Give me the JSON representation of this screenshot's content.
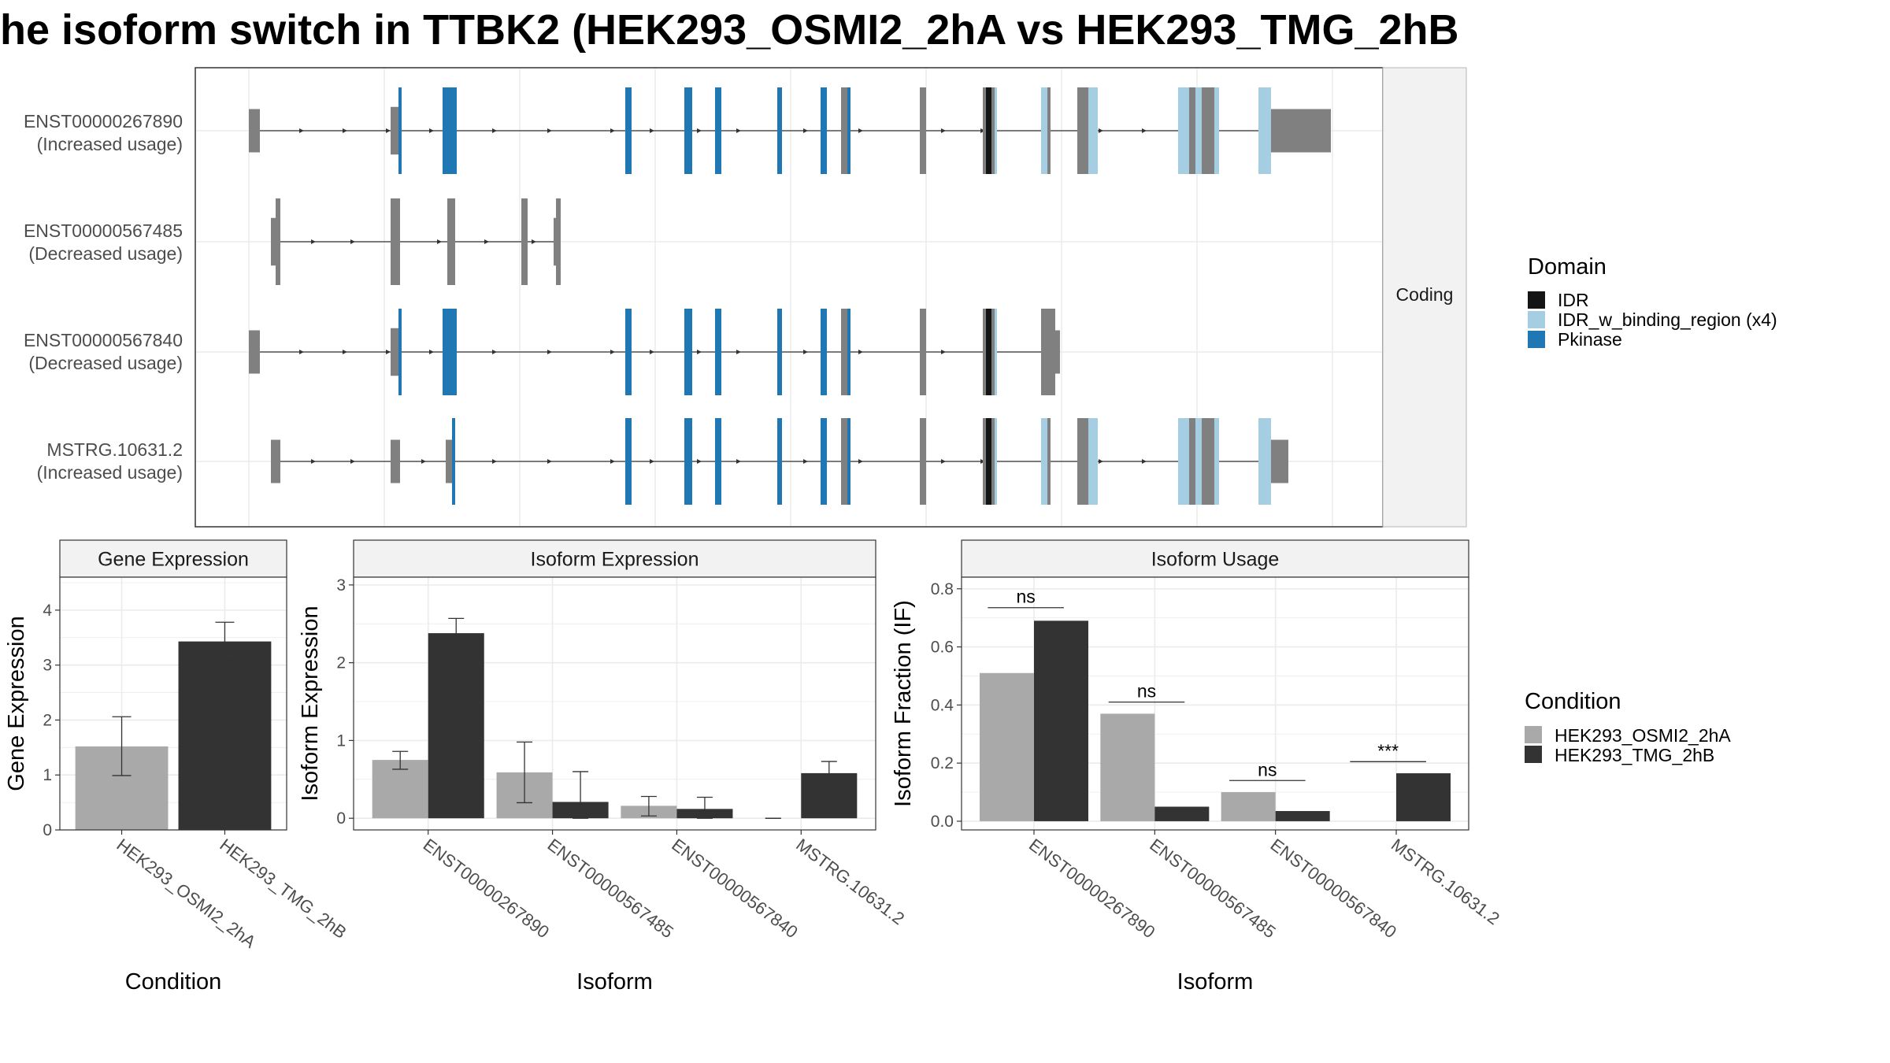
{
  "title": "he isoform switch in TTBK2 (HEK293_OSMI2_2hA vs HEK293_TMG_2hB",
  "colors": {
    "IDR": "#141414",
    "IDR_w_binding_region": "#a6cee3",
    "Pkinase": "#1f78b4",
    "noncoding": "#808080",
    "cond1": "#a9a9a9",
    "cond2": "#333333"
  },
  "structure": {
    "strip_label": "Coding",
    "isoforms": [
      {
        "id": "ENST00000267890",
        "usage": "(Increased usage)"
      },
      {
        "id": "ENST00000567485",
        "usage": "(Decreased usage)"
      },
      {
        "id": "ENST00000567840",
        "usage": "(Decreased usage)"
      },
      {
        "id": "MSTRG.10631.2",
        "usage": "(Increased usage)"
      }
    ]
  },
  "legend_domain": {
    "title": "Domain",
    "items": [
      {
        "label": "IDR",
        "color": "#141414"
      },
      {
        "label": "IDR_w_binding_region (x4)",
        "color": "#a6cee3"
      },
      {
        "label": "Pkinase",
        "color": "#1f78b4"
      }
    ]
  },
  "legend_condition": {
    "title": "Condition",
    "items": [
      {
        "label": "HEK293_OSMI2_2hA",
        "color": "#a9a9a9"
      },
      {
        "label": "HEK293_TMG_2hB",
        "color": "#333333"
      }
    ]
  },
  "chart_data": [
    {
      "type": "bar",
      "title": "Gene Expression",
      "xlabel": "Condition",
      "ylabel": "Gene Expression",
      "categories": [
        "HEK293_OSMI2_2hA",
        "HEK293_TMG_2hB"
      ],
      "values": [
        1.52,
        3.43
      ],
      "errors": [
        [
          0.99,
          2.06
        ],
        [
          3.08,
          3.78
        ]
      ],
      "ylim": [
        0,
        4.6
      ],
      "yticks": [
        "0",
        "1",
        "2",
        "3",
        "4"
      ],
      "grid": true
    },
    {
      "type": "bar",
      "title": "Isoform Expression",
      "xlabel": "Isoform",
      "ylabel": "Isoform Expression",
      "categories": [
        "ENST00000267890",
        "ENST00000567485",
        "ENST00000567840",
        "MSTRG.10631.2"
      ],
      "series": [
        {
          "name": "HEK293_OSMI2_2hA",
          "values": [
            0.75,
            0.59,
            0.16,
            0.0
          ],
          "errors": [
            [
              0.63,
              0.86
            ],
            [
              0.2,
              0.98
            ],
            [
              0.03,
              0.28
            ],
            [
              0.0,
              0.0
            ]
          ]
        },
        {
          "name": "HEK293_TMG_2hB",
          "values": [
            2.38,
            0.21,
            0.12,
            0.58
          ],
          "errors": [
            [
              2.2,
              2.57
            ],
            [
              0.0,
              0.6
            ],
            [
              0.0,
              0.27
            ],
            [
              0.42,
              0.73
            ]
          ]
        }
      ],
      "ylim": [
        -0.15,
        3.1
      ],
      "yticks": [
        "0",
        "1",
        "2",
        "3"
      ],
      "grid": true
    },
    {
      "type": "bar",
      "title": "Isoform Usage",
      "xlabel": "Isoform",
      "ylabel": "Isoform Fraction (IF)",
      "categories": [
        "ENST00000267890",
        "ENST00000567485",
        "ENST00000567840",
        "MSTRG.10631.2"
      ],
      "series": [
        {
          "name": "HEK293_OSMI2_2hA",
          "values": [
            0.51,
            0.37,
            0.1,
            0.0
          ]
        },
        {
          "name": "HEK293_TMG_2hB",
          "values": [
            0.69,
            0.05,
            0.035,
            0.165
          ]
        }
      ],
      "significance": [
        "ns",
        "ns",
        "ns",
        "***"
      ],
      "significance_y": [
        0.735,
        0.41,
        0.14,
        0.205
      ],
      "ylim": [
        -0.03,
        0.84
      ],
      "yticks": [
        "0.0",
        "0.2",
        "0.4",
        "0.6",
        "0.8"
      ],
      "grid": true
    }
  ]
}
